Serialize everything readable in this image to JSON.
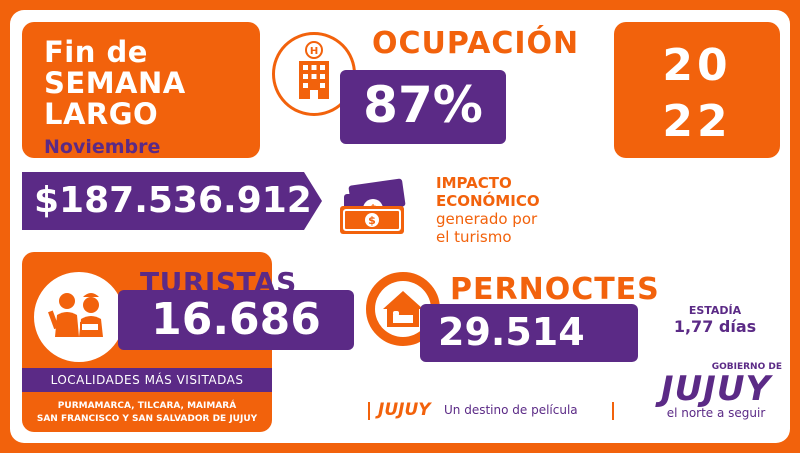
{
  "title": {
    "line1": "Fin de",
    "line2": "SEMANA",
    "line3": "LARGO",
    "sub": "Noviembre"
  },
  "year": {
    "top": "20",
    "bottom": "22"
  },
  "occupancy": {
    "label": "OCUPACIÓN",
    "value": "87%"
  },
  "impact": {
    "amount": "$187.536.912",
    "line1": "IMPACTO",
    "line2": "ECONÓMICO",
    "line3": "generado por",
    "line4": "el turismo"
  },
  "tourists": {
    "label": "TURISTAS",
    "value": "16.686"
  },
  "overnight": {
    "label": "PERNOCTES",
    "value": "29.514"
  },
  "stay": {
    "label": "ESTADÍA",
    "value": "1,77 días"
  },
  "localities": {
    "heading": "LOCALIDADES MÁS VISITADAS",
    "line1": "PURMAMARCA, TILCARA, MAIMARÁ",
    "line2": "SAN FRANCISCO Y SAN SALVADOR DE JUJUY"
  },
  "slogan": {
    "brand": "JUJUY",
    "text": "Un destino de película"
  },
  "government": {
    "top": "GOBIERNO DE",
    "name": "JUJUY",
    "tagline": "el norte a seguir"
  },
  "colors": {
    "orange": "#f2620c",
    "purple": "#5b2a86",
    "white": "#ffffff"
  },
  "icons": [
    "hotel-icon",
    "money-icon",
    "tourists-icon",
    "house-icon"
  ]
}
